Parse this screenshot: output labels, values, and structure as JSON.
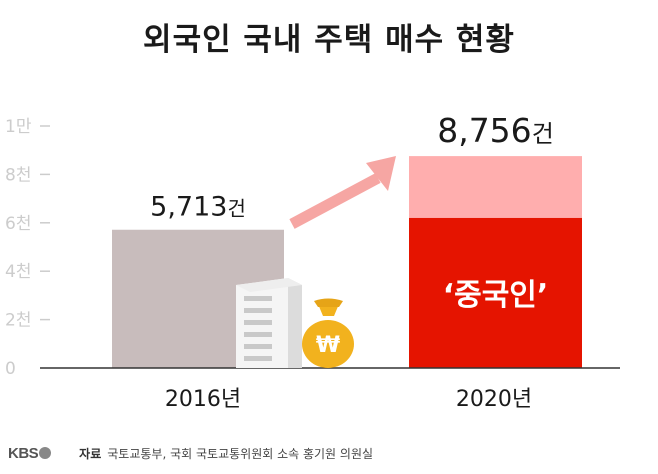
{
  "title": "외국인 국내 주택 매수 현황",
  "chart_data": {
    "type": "bar",
    "categories": [
      "2016년",
      "2020년"
    ],
    "values": [
      5713,
      8756
    ],
    "value_labels": [
      {
        "number": "5,713",
        "unit": "건"
      },
      {
        "number": "8,756",
        "unit": "건"
      }
    ],
    "segment": {
      "category_index": 1,
      "name": "‘중국인’",
      "value": 6200
    },
    "y_ticks": [
      {
        "value": 0,
        "label": "0"
      },
      {
        "value": 2000,
        "label": "2천"
      },
      {
        "value": 4000,
        "label": "4천"
      },
      {
        "value": 6000,
        "label": "6천"
      },
      {
        "value": 8000,
        "label": "8천"
      },
      {
        "value": 10000,
        "label": "1만"
      }
    ],
    "ylim": [
      0,
      10000
    ],
    "grid": false
  },
  "colors": {
    "bar_2016": "#c8bcbc",
    "bar_total_2020": "#ffaeae",
    "bar_china_2020": "#e51400",
    "arrow": "#f6a6a3",
    "tick_text": "#cccccc",
    "coin": "#f2b21e"
  },
  "icons": [
    "apartment-building-icon",
    "money-bag-icon",
    "arrow-up-right-icon"
  ],
  "footer": {
    "logo": "KBS",
    "source_label": "자료",
    "source_text": "국토교통부, 국회 국토교통위원회 소속 홍기원 의원실"
  }
}
